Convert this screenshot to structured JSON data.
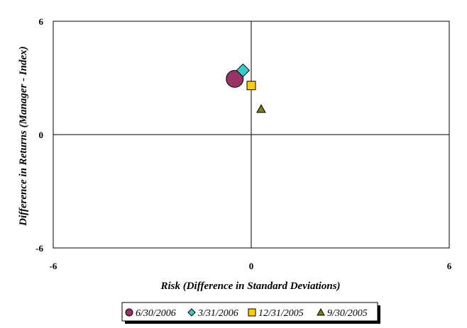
{
  "chart_data": {
    "type": "scatter",
    "title": "",
    "xlabel": "Risk (Difference in Standard Deviations)",
    "ylabel": "Difference in Returns (Manager - Index)",
    "xlim": [
      -6,
      6
    ],
    "ylim": [
      -6,
      6
    ],
    "x_ticks": [
      "-6",
      "0",
      "6"
    ],
    "y_ticks": [
      "6",
      "0",
      "-6"
    ],
    "grid": false,
    "legend_position": "bottom",
    "series": [
      {
        "name": "6/30/2006",
        "marker": "circle",
        "color": "#993366",
        "x": -0.5,
        "y": 2.95
      },
      {
        "name": "3/31/2006",
        "marker": "diamond",
        "color": "#33CCCC",
        "x": -0.25,
        "y": 3.4
      },
      {
        "name": "12/31/2005",
        "marker": "square",
        "color": "#FFCC00",
        "x": 0.0,
        "y": 2.6
      },
      {
        "name": "9/30/2005",
        "marker": "triangle",
        "color": "#808000",
        "x": 0.3,
        "y": 1.35
      }
    ]
  }
}
